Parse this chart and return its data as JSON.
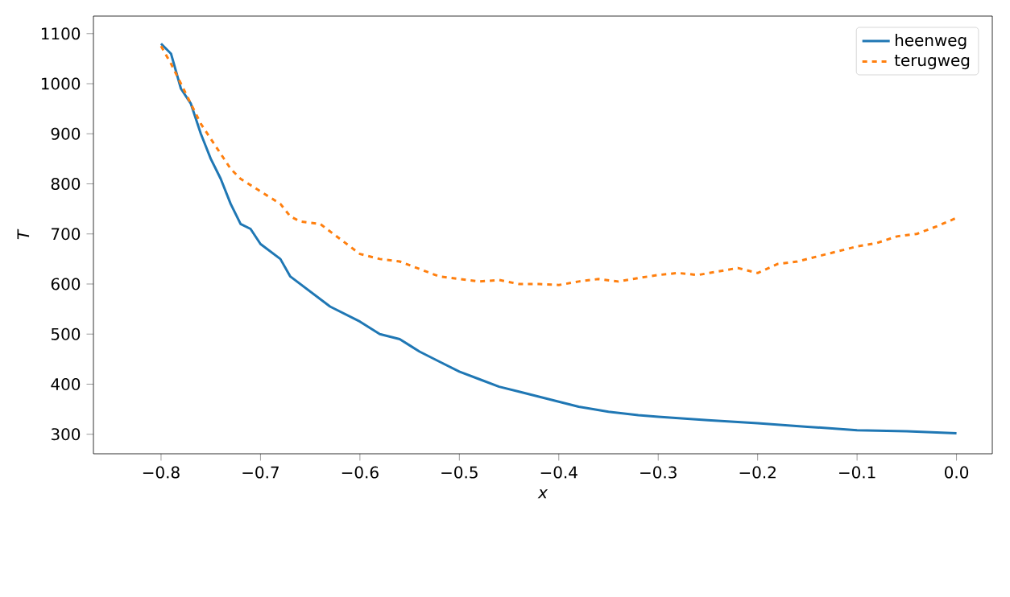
{
  "chart_data": {
    "type": "line",
    "xlabel": "x",
    "ylabel": "T",
    "xlim": [
      -0.868,
      0.036
    ],
    "ylim": [
      261,
      1135
    ],
    "xticks": [
      {
        "value": -0.8,
        "label": "−0.8"
      },
      {
        "value": -0.7,
        "label": "−0.7"
      },
      {
        "value": -0.6,
        "label": "−0.6"
      },
      {
        "value": -0.5,
        "label": "−0.5"
      },
      {
        "value": -0.4,
        "label": "−0.4"
      },
      {
        "value": -0.3,
        "label": "−0.3"
      },
      {
        "value": -0.2,
        "label": "−0.2"
      },
      {
        "value": -0.1,
        "label": "−0.1"
      },
      {
        "value": 0.0,
        "label": "0.0"
      }
    ],
    "yticks": [
      300,
      400,
      500,
      600,
      700,
      800,
      900,
      1000,
      1100
    ],
    "legend": "top right",
    "grid": false,
    "series": [
      {
        "name": "heenweg",
        "color": "#1f77b4",
        "line_style": "solid",
        "x": [
          -0.8,
          -0.79,
          -0.78,
          -0.77,
          -0.76,
          -0.75,
          -0.74,
          -0.73,
          -0.72,
          -0.71,
          -0.7,
          -0.68,
          -0.67,
          -0.65,
          -0.63,
          -0.6,
          -0.58,
          -0.56,
          -0.54,
          -0.52,
          -0.5,
          -0.48,
          -0.46,
          -0.44,
          -0.42,
          -0.4,
          -0.38,
          -0.35,
          -0.32,
          -0.3,
          -0.25,
          -0.2,
          -0.15,
          -0.1,
          -0.05,
          0.0
        ],
        "values": [
          1080,
          1060,
          990,
          960,
          900,
          850,
          810,
          760,
          720,
          710,
          680,
          650,
          615,
          585,
          555,
          525,
          500,
          490,
          465,
          445,
          425,
          410,
          395,
          385,
          375,
          365,
          355,
          345,
          338,
          335,
          328,
          322,
          315,
          308,
          306,
          302
        ]
      },
      {
        "name": "terugweg",
        "color": "#ff7f0e",
        "line_style": "dashed",
        "x": [
          -0.8,
          -0.79,
          -0.78,
          -0.77,
          -0.76,
          -0.75,
          -0.74,
          -0.73,
          -0.72,
          -0.7,
          -0.68,
          -0.67,
          -0.66,
          -0.64,
          -0.62,
          -0.6,
          -0.58,
          -0.56,
          -0.54,
          -0.52,
          -0.5,
          -0.48,
          -0.46,
          -0.44,
          -0.42,
          -0.4,
          -0.38,
          -0.36,
          -0.34,
          -0.32,
          -0.3,
          -0.28,
          -0.26,
          -0.24,
          -0.22,
          -0.2,
          -0.18,
          -0.16,
          -0.14,
          -0.12,
          -0.1,
          -0.08,
          -0.06,
          -0.04,
          -0.02,
          0.0
        ],
        "values": [
          1075,
          1040,
          1000,
          960,
          920,
          890,
          860,
          830,
          810,
          785,
          760,
          735,
          725,
          720,
          690,
          660,
          650,
          645,
          630,
          615,
          610,
          605,
          608,
          600,
          600,
          598,
          605,
          610,
          605,
          612,
          618,
          622,
          618,
          625,
          632,
          622,
          640,
          645,
          655,
          665,
          675,
          682,
          695,
          700,
          715,
          732
        ]
      }
    ]
  }
}
